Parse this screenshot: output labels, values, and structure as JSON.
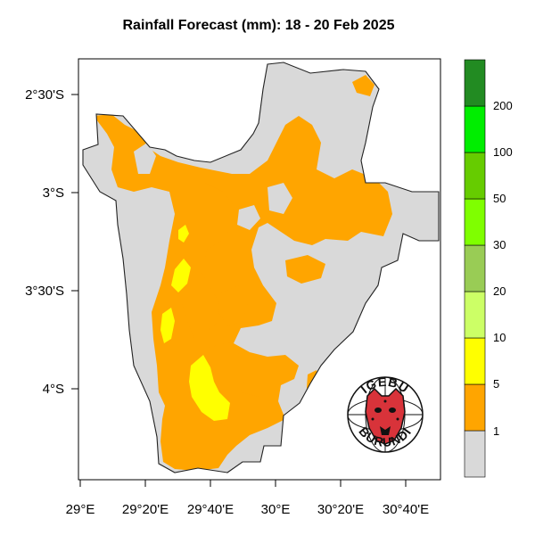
{
  "title": "Rainfall Forecast (mm): 18 - 20 Feb 2025",
  "axes": {
    "x_ticks": [
      "29°E",
      "29°20'E",
      "29°40'E",
      "30°E",
      "30°20'E",
      "30°40'E"
    ],
    "y_ticks": [
      "2°30'S",
      "3°S",
      "3°30'S",
      "4°S"
    ]
  },
  "colorbar": {
    "labels": [
      "1",
      "5",
      "10",
      "20",
      "30",
      "50",
      "100",
      "200"
    ],
    "colors": [
      "#d9d9d9",
      "#ffa500",
      "#ffff00",
      "#ccff66",
      "#99cc55",
      "#7fff00",
      "#66cc00",
      "#00ee00",
      "#228b22"
    ]
  },
  "legend_classes": [
    {
      "label": "1",
      "color": "#ffa500"
    },
    {
      "label": "5",
      "color": "#ffff00"
    }
  ],
  "logo": {
    "top_text": "IGEBU",
    "bottom_text": "BURUNDI"
  }
}
